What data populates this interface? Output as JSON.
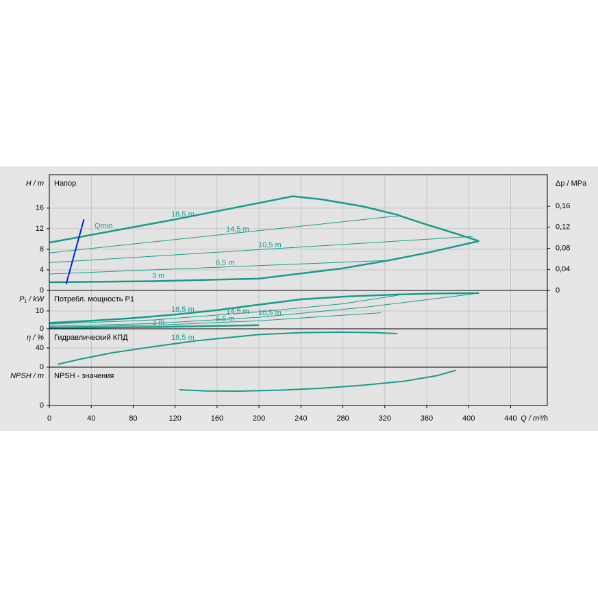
{
  "chart_data": [
    {
      "type": "line",
      "title": "Напор",
      "y_label": "H / m",
      "y2_label": "Δp / MPa",
      "xlim": [
        0,
        475
      ],
      "ylim": [
        0,
        22.5
      ],
      "yticks": [
        0,
        4,
        8,
        12,
        16
      ],
      "y2lim": [
        0,
        0.22
      ],
      "y2ticks": [
        0,
        {
          "value": 0.04,
          "label": "0,04"
        },
        {
          "value": 0.08,
          "label": "0,08"
        },
        {
          "value": 0.12,
          "label": "0,12"
        },
        {
          "value": 0.16,
          "label": "0,16"
        }
      ],
      "grid": true,
      "series": [
        {
          "name": "18,5 m",
          "color": "#179b8b",
          "line_width": 2.5,
          "x": [
            0,
            40,
            80,
            120,
            160,
            200,
            232,
            260,
            300,
            330,
            360,
            390,
            410
          ],
          "values": [
            9.3,
            10.8,
            12.3,
            13.8,
            15.4,
            17,
            18.3,
            17.7,
            16.3,
            14.8,
            12.8,
            10.9,
            9.6
          ]
        },
        {
          "name": "14,5 m",
          "color": "#179b8b",
          "line_width": 1,
          "x": [
            0,
            333
          ],
          "values": [
            7.3,
            14.5
          ]
        },
        {
          "name": "10,5 m",
          "color": "#179b8b",
          "line_width": 1,
          "x": [
            0,
            404
          ],
          "values": [
            5.4,
            10.5
          ]
        },
        {
          "name": "6,5 m",
          "color": "#179b8b",
          "line_width": 1,
          "x": [
            0,
            320
          ],
          "values": [
            3.2,
            5.8
          ]
        },
        {
          "name": "3 m",
          "color": "#179b8b",
          "line_width": 2.5,
          "x": [
            0,
            100,
            200,
            240,
            280,
            320,
            360,
            410
          ],
          "values": [
            1.6,
            1.8,
            2.3,
            3.3,
            4.3,
            5.7,
            7.3,
            9.6
          ]
        },
        {
          "name": "Qmin",
          "color": "#0a1fd6",
          "line_width": 2,
          "x": [
            16,
            33
          ],
          "values": [
            1.2,
            13.8
          ]
        }
      ]
    },
    {
      "type": "line",
      "title": "Потребл. мощность P1",
      "y_label": "P₁ / kW",
      "xlim": [
        0,
        475
      ],
      "ylim": [
        0,
        21.5
      ],
      "yticks": [
        0,
        10
      ],
      "grid": true,
      "series": [
        {
          "name": "18,5 m",
          "color": "#179b8b",
          "line_width": 2.5,
          "x": [
            0,
            40,
            80,
            120,
            160,
            200,
            240,
            280,
            330,
            370,
            410
          ],
          "values": [
            3.3,
            4.5,
            6,
            8,
            10.5,
            13.5,
            16.5,
            18,
            19.2,
            19.8,
            20
          ]
        },
        {
          "name": "14,5 m",
          "color": "#179b8b",
          "line_width": 1,
          "x": [
            0,
            100,
            200,
            280,
            333
          ],
          "values": [
            2.6,
            5,
            9.5,
            14,
            18.8
          ]
        },
        {
          "name": "10,5 m",
          "color": "#179b8b",
          "line_width": 1,
          "x": [
            0,
            100,
            200,
            300,
            404
          ],
          "values": [
            1.5,
            3,
            6.5,
            12,
            19.5
          ]
        },
        {
          "name": "6,5 m",
          "color": "#179b8b",
          "line_width": 1,
          "x": [
            0,
            100,
            200,
            316
          ],
          "values": [
            1,
            2,
            4.5,
            9
          ]
        },
        {
          "name": "3 m",
          "color": "#179b8b",
          "line_width": 2.5,
          "x": [
            0,
            100,
            200
          ],
          "values": [
            0.5,
            1,
            2
          ]
        }
      ]
    },
    {
      "type": "line",
      "title": "Гидравлический КПД",
      "y_label": "η / %",
      "xlim": [
        0,
        475
      ],
      "ylim": [
        0,
        80
      ],
      "yticks": [
        0,
        40
      ],
      "grid": true,
      "series": [
        {
          "name": "18,5 m",
          "color": "#179b8b",
          "line_width": 2,
          "x": [
            8,
            30,
            60,
            100,
            140,
            200,
            240,
            280,
            310,
            332
          ],
          "values": [
            6,
            17,
            30,
            43,
            55,
            68,
            72,
            73,
            72,
            70
          ]
        }
      ]
    },
    {
      "type": "line",
      "title": "NPSH - значения",
      "y_label": "NPSH / m",
      "x_label": "Q / m³/h",
      "xlim": [
        0,
        475
      ],
      "ylim": [
        0,
        10
      ],
      "yticks": [
        0
      ],
      "grid": true,
      "xticks": [
        0,
        40,
        80,
        120,
        160,
        200,
        240,
        280,
        320,
        360,
        400,
        440
      ],
      "series": [
        {
          "name": "NPSH",
          "color": "#179b8b",
          "line_width": 2,
          "x": [
            124,
            150,
            180,
            220,
            260,
            300,
            340,
            370,
            388
          ],
          "values": [
            4.1,
            3.8,
            3.75,
            4,
            4.5,
            5.3,
            6.4,
            7.8,
            9.2
          ]
        }
      ]
    }
  ]
}
